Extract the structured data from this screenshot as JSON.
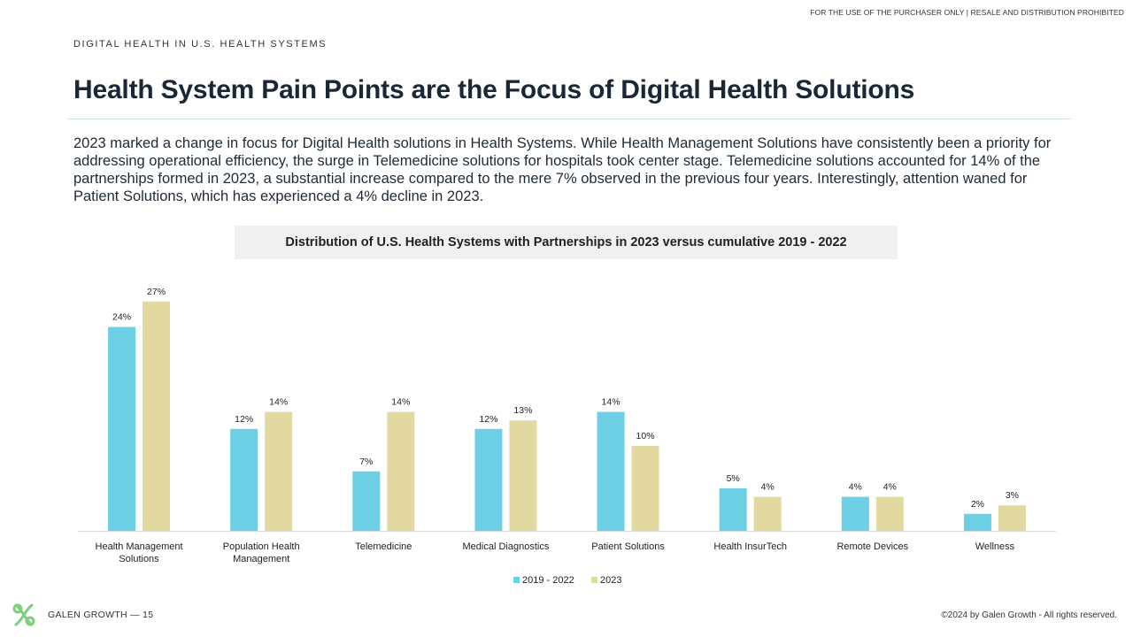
{
  "header": {
    "notice": "FOR THE USE OF THE PURCHASER ONLY | RESALE AND DISTRIBUTION PROHIBITED",
    "eyebrow": "DIGITAL HEALTH IN U.S. HEALTH SYSTEMS",
    "title": "Health System Pain Points are the Focus of Digital Health Solutions"
  },
  "body": {
    "paragraph": "2023 marked a change in focus for Digital Health solutions in Health Systems. While Health Management Solutions have consistently been a priority for addressing operational efficiency, the surge in Telemedicine solutions for hospitals took center stage. Telemedicine solutions accounted for 14% of the partnerships formed in 2023, a substantial increase compared to the mere 7% observed in the previous four years. Interestingly, attention waned for Patient Solutions, which has experienced a 4% decline in 2023."
  },
  "chart_data": {
    "type": "bar",
    "title": "Distribution of U.S. Health Systems with Partnerships in 2023 versus cumulative 2019 - 2022",
    "categories": [
      [
        "Health Management",
        "Solutions"
      ],
      [
        "Population Health",
        "Management"
      ],
      [
        "Telemedicine"
      ],
      [
        "Medical Diagnostics"
      ],
      [
        "Patient Solutions"
      ],
      [
        "Health InsurTech"
      ],
      [
        "Remote Devices"
      ],
      [
        "Wellness"
      ]
    ],
    "series": [
      {
        "name": "2019 - 2022",
        "color": "#6ccfe4",
        "values": [
          24,
          12,
          7,
          12,
          14,
          5,
          4,
          2
        ],
        "labels": [
          "24%",
          "12%",
          "7%",
          "12%",
          "14%",
          "5%",
          "4%",
          "2%"
        ]
      },
      {
        "name": "2023",
        "color": "#e2d9a0",
        "values": [
          27,
          14,
          14,
          13,
          10,
          4,
          4,
          3
        ],
        "labels": [
          "27%",
          "14%",
          "14%",
          "13%",
          "10%",
          "4%",
          "4%",
          "3%"
        ]
      }
    ],
    "unit": "%",
    "ylim": [
      0,
      28
    ],
    "grid": false,
    "legend_position": "bottom"
  },
  "footer": {
    "brand": "GALEN GROWTH  —  15",
    "copyright": "©2024 by Galen Growth  - All rights reserved."
  },
  "colors": {
    "title": "#1b2736",
    "rule": "#cfe3e6",
    "logo": "#7ed07a"
  }
}
